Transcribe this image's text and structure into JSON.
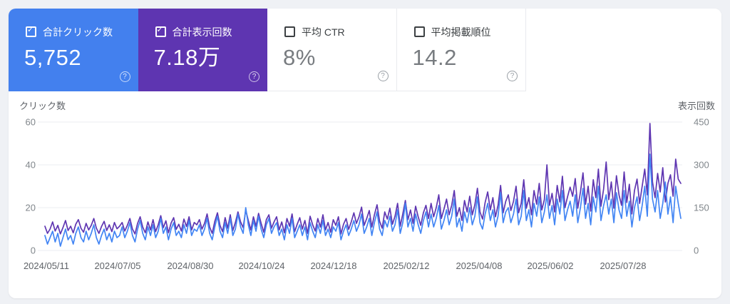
{
  "page": {
    "background": "#eff1f5",
    "card_background": "#ffffff"
  },
  "metrics": [
    {
      "label": "合計クリック数",
      "value": "5,752",
      "checked": true,
      "background": "#4380ee",
      "label_color": "#ffffff",
      "value_color": "#ffffff"
    },
    {
      "label": "合計表示回数",
      "value": "7.18万",
      "checked": true,
      "background": "#5e35b1",
      "label_color": "#ffffff",
      "value_color": "#ffffff"
    },
    {
      "label": "平均 CTR",
      "value": "8%",
      "checked": false,
      "background": "#ffffff",
      "label_color": "#3c4043",
      "value_color": "#787c80"
    },
    {
      "label": "平均掲載順位",
      "value": "14.2",
      "checked": false,
      "background": "#ffffff",
      "label_color": "#3c4043",
      "value_color": "#787c80"
    }
  ],
  "icons": {
    "checked_tiles": "checkbox-checked-icon",
    "unchecked_tiles": "checkbox-unchecked-icon",
    "help": "help-question-icon"
  },
  "chart_data": {
    "type": "line",
    "title": "",
    "grid": "horizontal",
    "legend_position": "none",
    "left_axis": {
      "title": "クリック数",
      "ticks": [
        60,
        40,
        20,
        0
      ],
      "range": [
        0,
        60
      ],
      "color": "#80868b"
    },
    "right_axis": {
      "title": "表示回数",
      "ticks": [
        450,
        300,
        150,
        0
      ],
      "range": [
        0,
        450
      ],
      "color": "#80868b"
    },
    "x_tick_labels": [
      "2024/05/11",
      "2024/07/05",
      "2024/08/30",
      "2024/10/24",
      "2024/12/18",
      "2025/02/12",
      "2025/04/08",
      "2025/06/02",
      "2025/07/28"
    ],
    "x_start_date": "2024/05/11",
    "x_interval_days": 2,
    "gridline_color": "#ebecf0",
    "series": [
      {
        "name": "クリック数",
        "axis": "left",
        "color": "#4285f4",
        "values": [
          7,
          3,
          6,
          9,
          4,
          8,
          2,
          6,
          10,
          5,
          7,
          3,
          8,
          11,
          6,
          4,
          9,
          5,
          8,
          12,
          6,
          3,
          7,
          10,
          5,
          8,
          4,
          9,
          6,
          7,
          11,
          6,
          9,
          13,
          7,
          4,
          10,
          14,
          8,
          5,
          11,
          7,
          12,
          6,
          9,
          15,
          8,
          11,
          5,
          10,
          13,
          7,
          9,
          6,
          12,
          8,
          14,
          7,
          10,
          9,
          12,
          7,
          10,
          15,
          8,
          5,
          11,
          16,
          9,
          6,
          13,
          8,
          15,
          7,
          10,
          17,
          11,
          8,
          20,
          12,
          7,
          14,
          9,
          16,
          10,
          6,
          12,
          15,
          8,
          11,
          13,
          7,
          10,
          5,
          12,
          8,
          15,
          6,
          9,
          12,
          7,
          11,
          5,
          13,
          9,
          6,
          12,
          8,
          14,
          7,
          10,
          6,
          11,
          9,
          13,
          5,
          9,
          12,
          7,
          10,
          14,
          9,
          12,
          17,
          8,
          11,
          15,
          7,
          13,
          18,
          10,
          7,
          14,
          11,
          16,
          9,
          12,
          19,
          8,
          13,
          22,
          11,
          15,
          9,
          17,
          12,
          8,
          14,
          18,
          11,
          17,
          11,
          15,
          21,
          10,
          14,
          19,
          12,
          16,
          24,
          11,
          15,
          9,
          18,
          13,
          20,
          12,
          16,
          25,
          13,
          10,
          17,
          22,
          14,
          19,
          11,
          16,
          27,
          13,
          18,
          20,
          13,
          17,
          24,
          12,
          16,
          28,
          14,
          19,
          11,
          22,
          16,
          25,
          13,
          18,
          26,
          15,
          21,
          12,
          24,
          17,
          28,
          14,
          19,
          23,
          16,
          26,
          13,
          20,
          29,
          15,
          22,
          12,
          25,
          18,
          30,
          14,
          21,
          26,
          17,
          24,
          13,
          27,
          19,
          15,
          28,
          16,
          23,
          11,
          20,
          25,
          14,
          21,
          30,
          16,
          45,
          24,
          18,
          28,
          15,
          22,
          32,
          17,
          25,
          13,
          30,
          22,
          15
        ]
      },
      {
        "name": "表示回数",
        "axis": "right",
        "color": "#5e35b1",
        "values": [
          85,
          60,
          75,
          100,
          68,
          88,
          58,
          80,
          105,
          70,
          85,
          62,
          92,
          108,
          78,
          64,
          95,
          72,
          88,
          112,
          78,
          60,
          84,
          102,
          70,
          90,
          66,
          98,
          76,
          85,
          98,
          68,
          88,
          112,
          75,
          58,
          95,
          118,
          82,
          62,
          100,
          72,
          108,
          66,
          90,
          122,
          80,
          104,
          62,
          96,
          115,
          74,
          92,
          68,
          110,
          84,
          118,
          72,
          98,
          90,
          108,
          75,
          95,
          128,
          82,
          60,
          102,
          132,
          88,
          66,
          115,
          78,
          125,
          70,
          98,
          135,
          100,
          80,
          142,
          105,
          72,
          118,
          85,
          130,
          95,
          64,
          108,
          125,
          78,
          100,
          118,
          72,
          100,
          62,
          112,
          85,
          128,
          66,
          92,
          115,
          75,
          105,
          60,
          120,
          90,
          68,
          112,
          82,
          125,
          72,
          98,
          64,
          108,
          88,
          118,
          58,
          92,
          112,
          74,
          100,
          132,
          95,
          118,
          152,
          88,
          112,
          140,
          82,
          125,
          160,
          102,
          78,
          135,
          110,
          148,
          92,
          120,
          165,
          85,
          128,
          175,
          108,
          142,
          95,
          155,
          118,
          88,
          132,
          158,
          112,
          165,
          118,
          150,
          195,
          112,
          145,
          180,
          125,
          158,
          210,
          120,
          150,
          105,
          175,
          135,
          190,
          125,
          160,
          218,
          135,
          110,
          168,
          205,
          142,
          185,
          118,
          158,
          228,
          132,
          172,
          195,
          140,
          172,
          225,
          132,
          165,
          248,
          148,
          185,
          125,
          210,
          162,
          235,
          142,
          178,
          300,
          158,
          200,
          135,
          228,
          170,
          260,
          150,
          188,
          222,
          190,
          252,
          148,
          205,
          272,
          162,
          225,
          138,
          248,
          185,
          285,
          155,
          215,
          310,
          178,
          240,
          148,
          262,
          195,
          158,
          275,
          168,
          232,
          128,
          210,
          250,
          165,
          225,
          285,
          195,
          445,
          240,
          185,
          270,
          205,
          290,
          170,
          235,
          265,
          190,
          320,
          250,
          235
        ]
      }
    ]
  }
}
